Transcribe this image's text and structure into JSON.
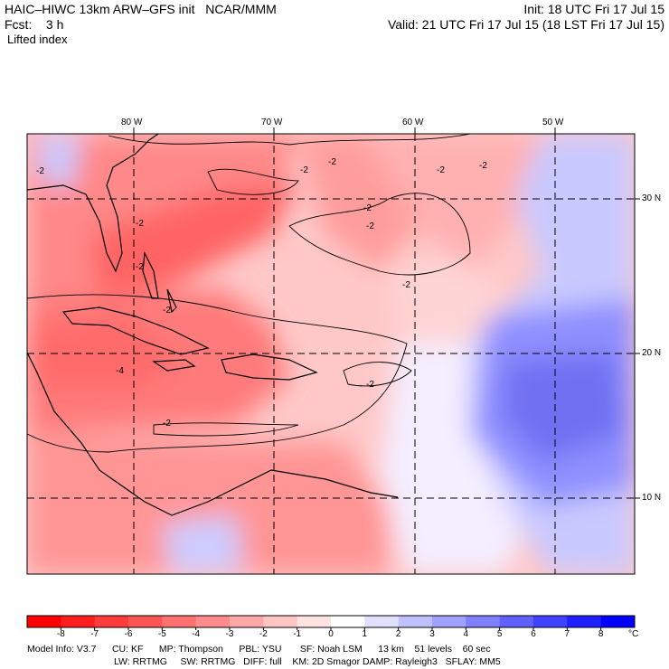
{
  "header": {
    "title_left": "HAIC–HIWC 13km ARW–GFS init   NCAR/MMM",
    "forecast": "Fcst:    3 h",
    "variable": "Lifted index",
    "init": "Init: 18 UTC Fri 17 Jul 15",
    "valid": "Valid: 21 UTC Fri 17 Jul 15 (18 LST Fri 17 Jul 15)"
  },
  "map": {
    "lon_labels": [
      "80 W",
      "70 W",
      "60 W",
      "50 W"
    ],
    "lat_labels": [
      "30 N",
      "20 N",
      "10 N"
    ],
    "contour_labels": [
      "-2",
      "-2",
      "-2",
      "-2",
      "-2",
      "-2",
      "-2",
      "-2",
      "-2",
      "-2",
      "-2",
      "-4",
      "-2",
      "-2"
    ]
  },
  "colorbar": {
    "levels": [
      "-8",
      "-7",
      "-6",
      "-5",
      "-4",
      "-3",
      "-2",
      "-1",
      "0",
      "1",
      "2",
      "3",
      "4",
      "5",
      "6",
      "7",
      "8"
    ],
    "unit": "°C",
    "colors": [
      "#ff0000",
      "#ff1e1e",
      "#ff3c3c",
      "#ff5555",
      "#ff7070",
      "#ff8c8c",
      "#ffa8a8",
      "#ffc4c4",
      "#ffe2e2",
      "#ffffff",
      "#e0e0ff",
      "#c0c0ff",
      "#a0a0ff",
      "#8080ff",
      "#6060ff",
      "#4040ff",
      "#2020ff",
      "#0000ff"
    ]
  },
  "footer": {
    "line1": "Model Info: V3.7      CU: KF      MP: Thompson      PBL: YSU       SF: Noah LSM      13 km    51 levels    60 sec",
    "line2": "LW: RRTMG     SW: RRTMG   DIFF: full    KM: 2D Smagor DAMP: Rayleigh3   SFLAY: MM5"
  }
}
